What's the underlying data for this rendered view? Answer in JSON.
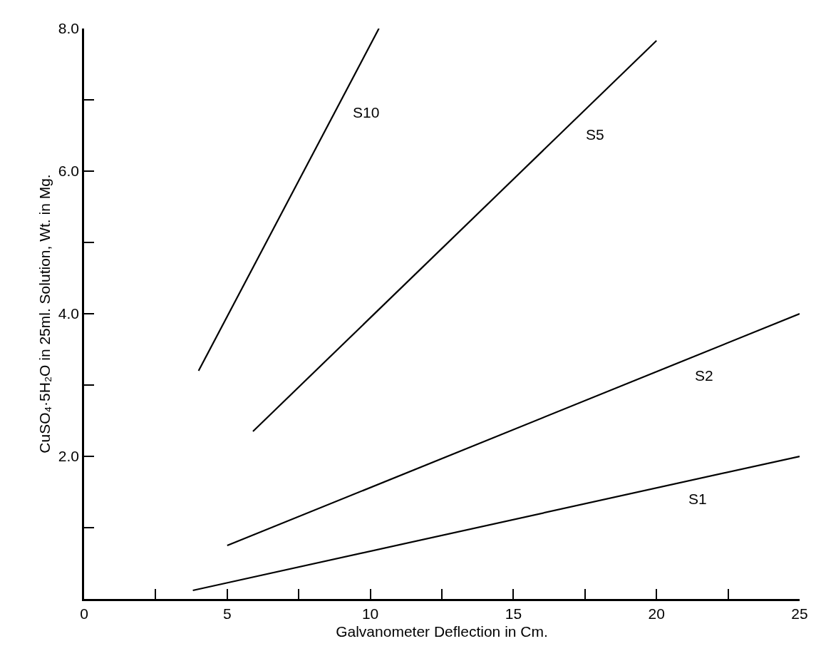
{
  "chart_data": {
    "type": "line",
    "xlabel": "Galvanometer Deflection in Cm.",
    "ylabel": "CuSO₄·5H₂O in 25ml. Solution, Wt. in Mg.",
    "series": [
      {
        "name": "S10",
        "color": "#000000",
        "x": [
          4.0,
          10.3
        ],
        "values": [
          3.2,
          8.0
        ]
      },
      {
        "name": "S5",
        "color": "#000000",
        "x": [
          5.9,
          20
        ],
        "values": [
          2.35,
          7.83
        ]
      },
      {
        "name": "S2",
        "color": "#000000",
        "x": [
          5.0,
          25
        ],
        "values": [
          0.75,
          4.0
        ]
      },
      {
        "name": "S1",
        "color": "#000000",
        "x": [
          3.8,
          25
        ],
        "values": [
          0.12,
          2.0
        ]
      }
    ],
    "xlim": [
      0,
      25
    ],
    "xticks": [
      0,
      {
        "value": 2.5,
        "label": null
      },
      5,
      {
        "value": 7.5,
        "label": null
      },
      10,
      {
        "value": 12.5,
        "label": null
      },
      15,
      {
        "value": 17.5,
        "label": null
      },
      20,
      {
        "value": 22.5,
        "label": null
      },
      25
    ],
    "ylim": [
      0,
      8
    ],
    "yticks": [
      {
        "value": 0,
        "label": null
      },
      {
        "value": 1,
        "label": null
      },
      {
        "value": 2,
        "label": "2.0"
      },
      {
        "value": 3,
        "label": null
      },
      {
        "value": 4,
        "label": "4.0"
      },
      {
        "value": 5,
        "label": null
      },
      {
        "value": 6,
        "label": "6.0"
      },
      {
        "value": 7,
        "label": null
      },
      {
        "value": 8,
        "label": "8.0"
      }
    ],
    "grid": false,
    "legend": false,
    "marker": "none",
    "line_style": "solid"
  }
}
